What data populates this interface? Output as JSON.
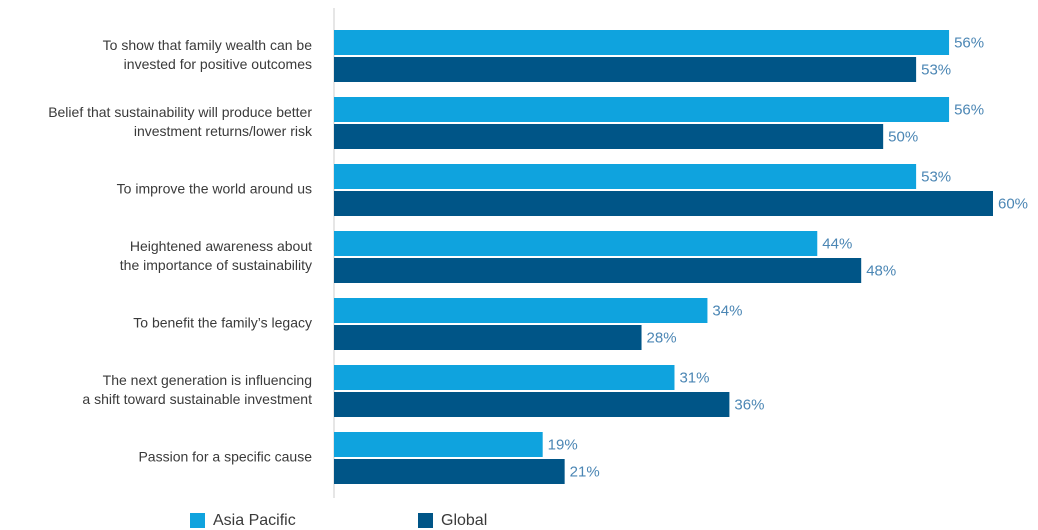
{
  "chart_data": {
    "type": "bar",
    "orientation": "horizontal",
    "categories": [
      [
        "To show that family wealth can be",
        "invested for positive outcomes"
      ],
      [
        "Belief that sustainability will produce better",
        "investment returns/lower risk"
      ],
      [
        "To improve the world around us"
      ],
      [
        "Heightened awareness about",
        "the importance of sustainability"
      ],
      [
        "To benefit the family’s legacy"
      ],
      [
        "The next generation is influencing",
        "a shift toward sustainable investment"
      ],
      [
        "Passion for a specific cause"
      ]
    ],
    "series": [
      {
        "name": "Asia Pacific",
        "color": "#0fa3de",
        "values": [
          56,
          56,
          53,
          44,
          34,
          31,
          19
        ],
        "value_labels": [
          "56%",
          "56%",
          "53%",
          "44%",
          "34%",
          "31%",
          "19%"
        ]
      },
      {
        "name": "Global",
        "color": "#005587",
        "values": [
          53,
          50,
          60,
          48,
          28,
          36,
          21
        ],
        "value_labels": [
          "53%",
          "50%",
          "60%",
          "48%",
          "28%",
          "36%",
          "21%"
        ]
      }
    ],
    "xlim": [
      0,
      60
    ],
    "grid": false,
    "legend": "bottom"
  }
}
